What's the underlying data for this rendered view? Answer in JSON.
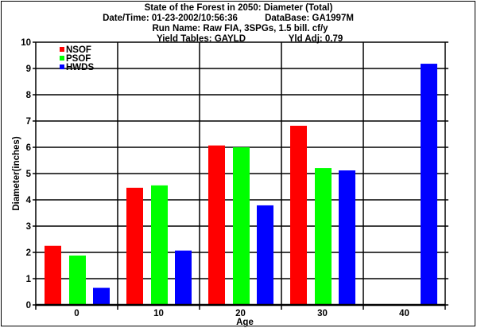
{
  "chart_data": {
    "type": "bar",
    "title_lines": [
      "State of the Forest in 2050: Diameter (Total)",
      "Date/Time: 01-23-2002/10:56:36",
      "DataBase: GA1997M",
      "Run Name: Raw FIA, 3SPGs, 1.5 bill. cf/y",
      "Yield Tables: GAYLD",
      "Yld Adj: 0.79"
    ],
    "xlabel": "Age",
    "ylabel": "Diameter(inches)",
    "categories": [
      "0",
      "10",
      "20",
      "30",
      "40"
    ],
    "ylim": [
      0,
      10
    ],
    "yticks": [
      "0",
      "1",
      "2",
      "3",
      "4",
      "5",
      "6",
      "7",
      "8",
      "9",
      "10"
    ],
    "grid": true,
    "legend_position": "top-left",
    "series": [
      {
        "name": "NSOF",
        "color": "#ff0000",
        "values": [
          2.25,
          4.46,
          6.07,
          6.82,
          0.02
        ]
      },
      {
        "name": "PSOF",
        "color": "#00ff00",
        "values": [
          1.88,
          4.55,
          6.0,
          5.21,
          0.02
        ]
      },
      {
        "name": "HWDS",
        "color": "#0000ff",
        "values": [
          0.65,
          2.07,
          3.79,
          5.12,
          9.18
        ]
      }
    ]
  }
}
